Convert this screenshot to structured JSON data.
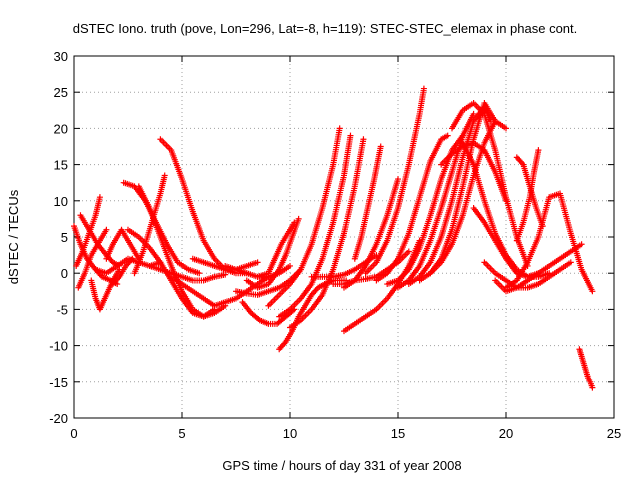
{
  "chart_data": {
    "type": "scatter",
    "title": "dSTEC Iono. truth (pove, Lon=296, Lat=-8, h=119): STEC-STEC_elemax in phase cont.",
    "xlabel": "GPS time / hours of day 331 of year 2008",
    "ylabel": "dSTEC  / TECUs",
    "xlim": [
      0,
      25
    ],
    "ylim": [
      -20,
      30
    ],
    "xticks": [
      0,
      5,
      10,
      15,
      20,
      25
    ],
    "yticks": [
      -20,
      -15,
      -10,
      -5,
      0,
      5,
      10,
      15,
      20,
      25,
      30
    ],
    "grid": true,
    "marker": "+",
    "color": "#ff0000",
    "arcs": [
      {
        "x": [
          0.0,
          0.3,
          0.6,
          1.0,
          1.3,
          1.7,
          2.0
        ],
        "y": [
          6.5,
          4.0,
          2.0,
          0.5,
          -0.5,
          -1.0,
          -1.5
        ]
      },
      {
        "x": [
          0.1,
          0.4,
          0.7,
          1.0,
          1.2
        ],
        "y": [
          1.0,
          3.0,
          5.5,
          8.0,
          10.5
        ]
      },
      {
        "x": [
          0.2,
          0.5,
          0.8,
          1.2,
          1.5
        ],
        "y": [
          -2.0,
          0.0,
          2.5,
          4.5,
          6.0
        ]
      },
      {
        "x": [
          0.3,
          0.7,
          1.1,
          1.5,
          1.8,
          2.1
        ],
        "y": [
          8.0,
          6.0,
          4.0,
          2.5,
          1.5,
          1.0
        ]
      },
      {
        "x": [
          0.8,
          1.0,
          1.2,
          1.5,
          1.8,
          2.1
        ],
        "y": [
          -1.0,
          -3.5,
          -5.0,
          -3.0,
          -1.0,
          0.5
        ]
      },
      {
        "x": [
          1.0,
          1.5,
          2.0,
          2.5,
          3.0,
          3.5,
          4.0
        ],
        "y": [
          0.5,
          0.0,
          1.0,
          2.0,
          1.5,
          1.0,
          1.5
        ]
      },
      {
        "x": [
          1.5,
          1.8,
          2.2,
          2.6,
          3.0
        ],
        "y": [
          2.0,
          4.0,
          6.0,
          4.0,
          2.0
        ]
      },
      {
        "x": [
          1.8,
          2.1,
          2.4,
          2.7
        ],
        "y": [
          -1.5,
          -0.5,
          1.0,
          2.0
        ]
      },
      {
        "x": [
          2.3,
          2.8,
          3.3,
          3.8,
          4.3,
          4.8,
          5.3,
          5.8
        ],
        "y": [
          12.5,
          12.0,
          10.0,
          7.0,
          4.0,
          1.5,
          0.5,
          0.0
        ]
      },
      {
        "x": [
          2.5,
          3.0,
          3.5,
          4.0,
          4.5,
          5.0,
          5.5,
          6.0,
          6.5
        ],
        "y": [
          6.0,
          5.0,
          3.5,
          1.5,
          -1.0,
          -3.5,
          -5.5,
          -6.0,
          -5.0
        ]
      },
      {
        "x": [
          2.8,
          3.2,
          3.6,
          4.0,
          4.2
        ],
        "y": [
          0.0,
          3.0,
          7.0,
          11.0,
          13.5
        ]
      },
      {
        "x": [
          3.0,
          3.5,
          4.0,
          4.5,
          5.0,
          5.5,
          6.0,
          6.5,
          7.0
        ],
        "y": [
          12.0,
          9.0,
          5.0,
          1.0,
          -2.5,
          -5.0,
          -6.0,
          -5.5,
          -4.5
        ]
      },
      {
        "x": [
          3.5,
          4.0,
          4.5,
          5.0,
          5.5,
          6.0,
          6.5,
          7.0
        ],
        "y": [
          1.0,
          0.5,
          0.0,
          -0.5,
          -1.0,
          -1.0,
          -0.5,
          -0.2
        ]
      },
      {
        "x": [
          4.0,
          4.5,
          5.0,
          5.5,
          6.0,
          6.5,
          7.0,
          7.5,
          8.0
        ],
        "y": [
          18.5,
          17.0,
          13.0,
          8.5,
          4.5,
          2.0,
          0.5,
          0.0,
          0.0
        ]
      },
      {
        "x": [
          4.5,
          5.0,
          5.5,
          6.0,
          6.5,
          7.0,
          7.5,
          8.0,
          8.5,
          9.0
        ],
        "y": [
          -0.5,
          -1.5,
          -2.5,
          -3.5,
          -4.5,
          -4.0,
          -3.5,
          -2.5,
          -1.5,
          -0.5
        ]
      },
      {
        "x": [
          5.5,
          6.0,
          6.5,
          7.0,
          7.5,
          8.0,
          8.5
        ],
        "y": [
          2.0,
          1.5,
          1.0,
          0.5,
          0.5,
          1.0,
          1.5
        ]
      },
      {
        "x": [
          7.0,
          7.5,
          8.0,
          8.5,
          9.0,
          9.5,
          10.0
        ],
        "y": [
          1.0,
          0.5,
          0.0,
          -0.5,
          -0.5,
          0.0,
          1.0
        ]
      },
      {
        "x": [
          7.5,
          8.0,
          8.5,
          9.0,
          9.5,
          10.0,
          10.5
        ],
        "y": [
          -2.5,
          -2.8,
          -3.0,
          -2.5,
          -2.0,
          -1.0,
          0.5
        ]
      },
      {
        "x": [
          7.8,
          8.2,
          8.6,
          9.0,
          9.4,
          9.8,
          10.2
        ],
        "y": [
          -4.0,
          -5.5,
          -6.5,
          -7.0,
          -7.0,
          -6.0,
          -5.0
        ]
      },
      {
        "x": [
          8.0,
          8.5,
          9.0,
          9.5,
          9.8,
          10.1,
          10.4
        ],
        "y": [
          -1.0,
          -2.0,
          -1.5,
          0.5,
          2.5,
          5.0,
          7.5
        ]
      },
      {
        "x": [
          8.5,
          9.0,
          9.3,
          9.6,
          9.9,
          10.2
        ],
        "y": [
          -0.5,
          0.0,
          2.0,
          4.0,
          5.5,
          7.0
        ]
      },
      {
        "x": [
          9.5,
          9.8,
          10.1,
          10.4,
          10.7,
          11.0,
          11.3,
          11.6,
          12.0,
          12.3,
          12.6
        ],
        "y": [
          -10.5,
          -9.5,
          -8.0,
          -6.0,
          -4.5,
          -3.0,
          -2.0,
          -1.5,
          -1.0,
          -1.0,
          -1.0
        ]
      },
      {
        "x": [
          9.0,
          9.5,
          10.0,
          10.5,
          11.0,
          11.5,
          12.0,
          12.3
        ],
        "y": [
          -4.5,
          -3.0,
          -1.5,
          0.5,
          4.0,
          9.0,
          15.0,
          20.0
        ]
      },
      {
        "x": [
          9.5,
          10.0,
          10.5,
          11.0,
          11.5,
          12.0,
          12.5,
          12.8
        ],
        "y": [
          -6.0,
          -5.0,
          -3.5,
          -1.5,
          2.0,
          7.0,
          13.5,
          19.0
        ]
      },
      {
        "x": [
          10.0,
          10.5,
          11.0,
          11.5,
          12.0,
          12.5,
          13.0,
          13.4
        ],
        "y": [
          -7.5,
          -6.5,
          -5.0,
          -3.0,
          0.5,
          5.5,
          12.0,
          18.5
        ]
      },
      {
        "x": [
          11.0,
          11.5,
          12.0,
          12.5,
          13.0,
          13.5,
          14.0
        ],
        "y": [
          -0.5,
          -0.5,
          -0.5,
          -0.2,
          0.5,
          1.5,
          2.5
        ]
      },
      {
        "x": [
          12.0,
          12.5,
          13.0,
          13.5,
          14.0,
          14.5,
          15.0,
          15.5
        ],
        "y": [
          -1.5,
          -1.5,
          -1.0,
          -0.8,
          -0.5,
          0.5,
          1.5,
          3.0
        ]
      },
      {
        "x": [
          12.5,
          13.0,
          13.5,
          14.0,
          14.5,
          15.0
        ],
        "y": [
          -2.0,
          -1.0,
          1.0,
          4.0,
          8.0,
          13.0
        ]
      },
      {
        "x": [
          12.5,
          13.0,
          13.5,
          14.0,
          14.5,
          15.0,
          15.5,
          16.0
        ],
        "y": [
          -8.0,
          -7.0,
          -6.0,
          -5.0,
          -3.5,
          -1.5,
          1.0,
          4.5
        ]
      },
      {
        "x": [
          13.0,
          13.3,
          13.6,
          13.9,
          14.2
        ],
        "y": [
          2.0,
          5.0,
          9.0,
          13.0,
          17.5
        ]
      },
      {
        "x": [
          13.5,
          14.0,
          14.5,
          15.0,
          15.5,
          16.0,
          16.2
        ],
        "y": [
          0.0,
          1.5,
          4.5,
          9.0,
          15.0,
          22.0,
          25.5
        ]
      },
      {
        "x": [
          14.0,
          14.5,
          15.0,
          15.5,
          16.0,
          16.5,
          17.0,
          17.3
        ],
        "y": [
          -1.0,
          0.0,
          2.0,
          5.5,
          10.5,
          15.5,
          18.5,
          19.0
        ]
      },
      {
        "x": [
          14.5,
          15.0,
          15.5,
          16.0,
          16.5,
          17.0,
          17.5,
          18.0
        ],
        "y": [
          -1.5,
          -1.0,
          0.5,
          3.5,
          8.0,
          13.0,
          17.0,
          19.0
        ]
      },
      {
        "x": [
          15.0,
          15.5,
          16.0,
          16.5,
          17.0,
          17.5,
          18.0,
          18.5
        ],
        "y": [
          -2.0,
          -1.0,
          1.0,
          4.5,
          9.0,
          14.0,
          19.0,
          22.0
        ]
      },
      {
        "x": [
          15.5,
          16.0,
          16.5,
          17.0,
          17.5,
          18.0,
          18.5,
          19.0,
          19.3
        ],
        "y": [
          -1.5,
          -0.5,
          1.5,
          5.0,
          10.0,
          16.0,
          21.0,
          23.0,
          21.0
        ]
      },
      {
        "x": [
          16.0,
          16.5,
          17.0,
          17.5,
          18.0,
          18.5,
          19.0,
          19.5
        ],
        "y": [
          -1.0,
          0.0,
          2.0,
          6.0,
          12.0,
          18.5,
          23.5,
          21.0
        ]
      },
      {
        "x": [
          16.5,
          17.0,
          17.5,
          18.0,
          18.5,
          19.0,
          19.5,
          20.0
        ],
        "y": [
          0.0,
          1.5,
          4.0,
          8.0,
          13.5,
          18.0,
          21.0,
          20.0
        ]
      },
      {
        "x": [
          17.0,
          17.5,
          18.0,
          18.5,
          19.0,
          19.5,
          20.0
        ],
        "y": [
          15.0,
          16.5,
          17.5,
          18.0,
          17.0,
          14.0,
          10.0
        ]
      },
      {
        "x": [
          17.5,
          18.0,
          18.5,
          19.0,
          19.5,
          20.0,
          20.5,
          21.0
        ],
        "y": [
          20.0,
          22.5,
          23.5,
          22.0,
          17.0,
          10.5,
          5.0,
          1.0
        ]
      },
      {
        "x": [
          18.0,
          18.5,
          19.0,
          19.5,
          20.0,
          20.5,
          21.0,
          21.5
        ],
        "y": [
          18.0,
          15.0,
          10.0,
          5.5,
          2.5,
          0.5,
          -0.5,
          0.0
        ]
      },
      {
        "x": [
          18.5,
          19.0,
          19.5,
          20.0,
          20.5,
          21.0,
          21.5,
          22.0
        ],
        "y": [
          9.0,
          7.0,
          4.5,
          2.0,
          0.0,
          -0.5,
          -0.5,
          0.0
        ]
      },
      {
        "x": [
          19.0,
          19.5,
          20.0,
          20.5,
          21.0,
          21.5,
          22.0,
          22.5,
          23.0
        ],
        "y": [
          1.5,
          0.0,
          -1.0,
          -2.0,
          -2.0,
          -1.5,
          -0.5,
          0.5,
          1.5
        ]
      },
      {
        "x": [
          19.5,
          20.0,
          20.5,
          21.0,
          21.5,
          22.0,
          22.5,
          23.0,
          23.5
        ],
        "y": [
          -1.0,
          -2.5,
          -2.0,
          -1.0,
          0.0,
          1.0,
          2.0,
          3.0,
          4.0
        ]
      },
      {
        "x": [
          20.5,
          20.8,
          21.1,
          21.4,
          21.7
        ],
        "y": [
          16.0,
          15.0,
          12.0,
          9.0,
          6.5
        ]
      },
      {
        "x": [
          20.0,
          20.5,
          21.0,
          21.5,
          22.0,
          22.5,
          23.0,
          23.5,
          24.0
        ],
        "y": [
          -2.0,
          -1.0,
          1.5,
          5.0,
          10.5,
          11.0,
          5.5,
          0.5,
          -2.5
        ]
      },
      {
        "x": [
          20.5,
          20.8,
          21.1,
          21.3,
          21.5
        ],
        "y": [
          4.5,
          7.0,
          10.5,
          14.0,
          17.0
        ]
      },
      {
        "x": [
          23.4,
          23.5,
          23.6,
          23.7,
          23.8,
          23.9,
          24.0
        ],
        "y": [
          -10.5,
          -11.5,
          -12.5,
          -13.5,
          -14.5,
          -15.0,
          -15.8
        ]
      }
    ]
  }
}
